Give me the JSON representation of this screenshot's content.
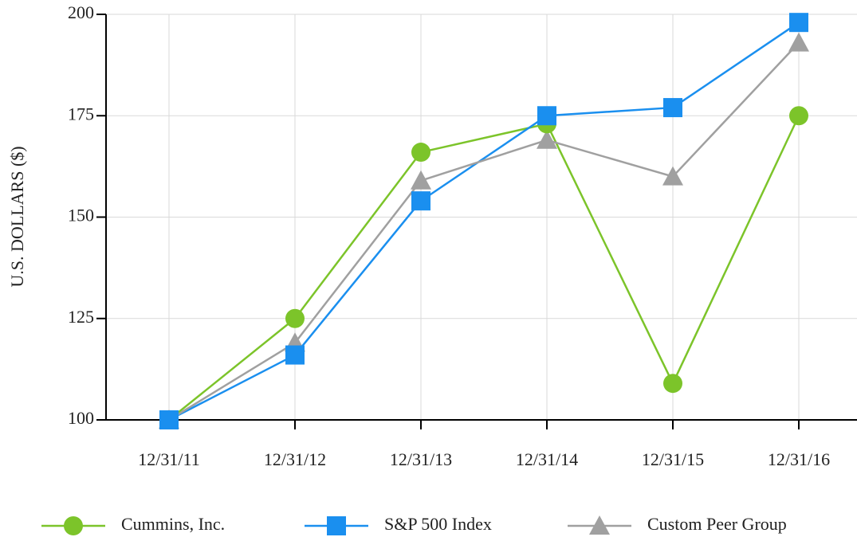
{
  "chart_data": {
    "type": "line",
    "y_label": "U.S. DOLLARS ($)",
    "categories": [
      "12/31/11",
      "12/31/12",
      "12/31/13",
      "12/31/14",
      "12/31/15",
      "12/31/16"
    ],
    "series": [
      {
        "name": "Cummins, Inc.",
        "color": "#7cc42a",
        "marker": "circle",
        "values": [
          100,
          125,
          166,
          173,
          109,
          175
        ]
      },
      {
        "name": "S&P 500 Index",
        "color": "#1a8fef",
        "marker": "square",
        "values": [
          100,
          116,
          154,
          175,
          177,
          198
        ]
      },
      {
        "name": "Custom Peer Group",
        "color": "#a0a0a0",
        "marker": "triangle",
        "values": [
          100,
          119,
          159,
          169,
          160,
          193
        ]
      }
    ],
    "ylim": [
      100,
      200
    ],
    "yticks": [
      100,
      125,
      150,
      175,
      200
    ],
    "grid": true,
    "legend": "bottom"
  }
}
